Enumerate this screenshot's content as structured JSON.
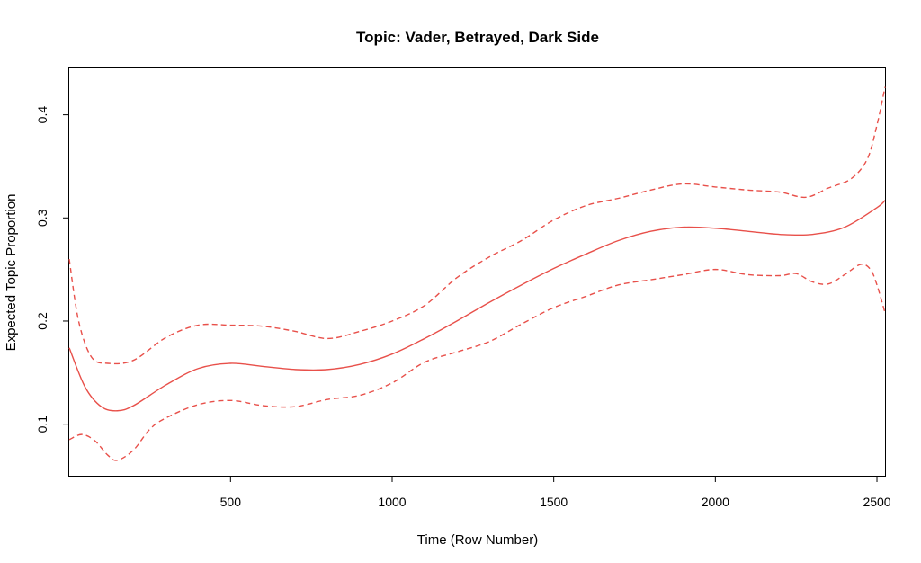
{
  "chart_data": {
    "type": "line",
    "title": "Topic:  Vader, Betrayed, Dark Side",
    "xlabel": "Time (Row Number)",
    "ylabel": "Expected Topic Proportion",
    "xlim": [
      1,
      2525
    ],
    "ylim": [
      0.05,
      0.445
    ],
    "x_ticks": [
      500,
      1000,
      1500,
      2000,
      2500
    ],
    "y_ticks": [
      0.1,
      0.2,
      0.3,
      0.4
    ],
    "x_tick_labels": [
      "500",
      "1000",
      "1500",
      "2000",
      "2500"
    ],
    "y_tick_labels": [
      "0.1",
      "0.2",
      "0.3",
      "0.4"
    ],
    "grid": false,
    "colors": {
      "series": "#e8504a",
      "frame": "#000000"
    },
    "series": [
      {
        "role": "estimate",
        "style": "solid",
        "x": [
          1,
          50,
          100,
          150,
          200,
          300,
          400,
          500,
          600,
          700,
          800,
          900,
          1000,
          1100,
          1200,
          1300,
          1400,
          1500,
          1600,
          1700,
          1800,
          1900,
          2000,
          2100,
          2200,
          2300,
          2400,
          2500,
          2525
        ],
        "y": [
          0.174,
          0.136,
          0.117,
          0.113,
          0.118,
          0.138,
          0.154,
          0.159,
          0.156,
          0.153,
          0.153,
          0.158,
          0.168,
          0.183,
          0.2,
          0.218,
          0.235,
          0.251,
          0.265,
          0.278,
          0.287,
          0.291,
          0.29,
          0.287,
          0.284,
          0.284,
          0.291,
          0.31,
          0.317
        ]
      },
      {
        "role": "upper-bound",
        "style": "dashed",
        "x": [
          1,
          30,
          70,
          120,
          200,
          300,
          400,
          500,
          600,
          700,
          800,
          900,
          1000,
          1100,
          1200,
          1300,
          1400,
          1500,
          1600,
          1700,
          1800,
          1900,
          2000,
          2100,
          2200,
          2280,
          2350,
          2420,
          2470,
          2500,
          2525
        ],
        "y": [
          0.26,
          0.2,
          0.165,
          0.159,
          0.162,
          0.184,
          0.196,
          0.196,
          0.195,
          0.19,
          0.183,
          0.19,
          0.2,
          0.215,
          0.242,
          0.262,
          0.278,
          0.298,
          0.312,
          0.319,
          0.327,
          0.333,
          0.33,
          0.327,
          0.325,
          0.32,
          0.329,
          0.338,
          0.357,
          0.39,
          0.427
        ]
      },
      {
        "role": "lower-bound",
        "style": "dashed",
        "x": [
          1,
          40,
          80,
          120,
          150,
          200,
          250,
          300,
          400,
          500,
          600,
          700,
          800,
          900,
          1000,
          1100,
          1200,
          1300,
          1400,
          1500,
          1600,
          1700,
          1800,
          1900,
          2000,
          2100,
          2200,
          2250,
          2300,
          2350,
          2400,
          2450,
          2480,
          2500,
          2525
        ],
        "y": [
          0.085,
          0.09,
          0.084,
          0.07,
          0.065,
          0.075,
          0.095,
          0.106,
          0.119,
          0.123,
          0.118,
          0.117,
          0.124,
          0.128,
          0.14,
          0.16,
          0.17,
          0.18,
          0.197,
          0.213,
          0.224,
          0.235,
          0.24,
          0.245,
          0.25,
          0.245,
          0.244,
          0.246,
          0.238,
          0.236,
          0.245,
          0.255,
          0.25,
          0.235,
          0.208
        ]
      }
    ]
  }
}
